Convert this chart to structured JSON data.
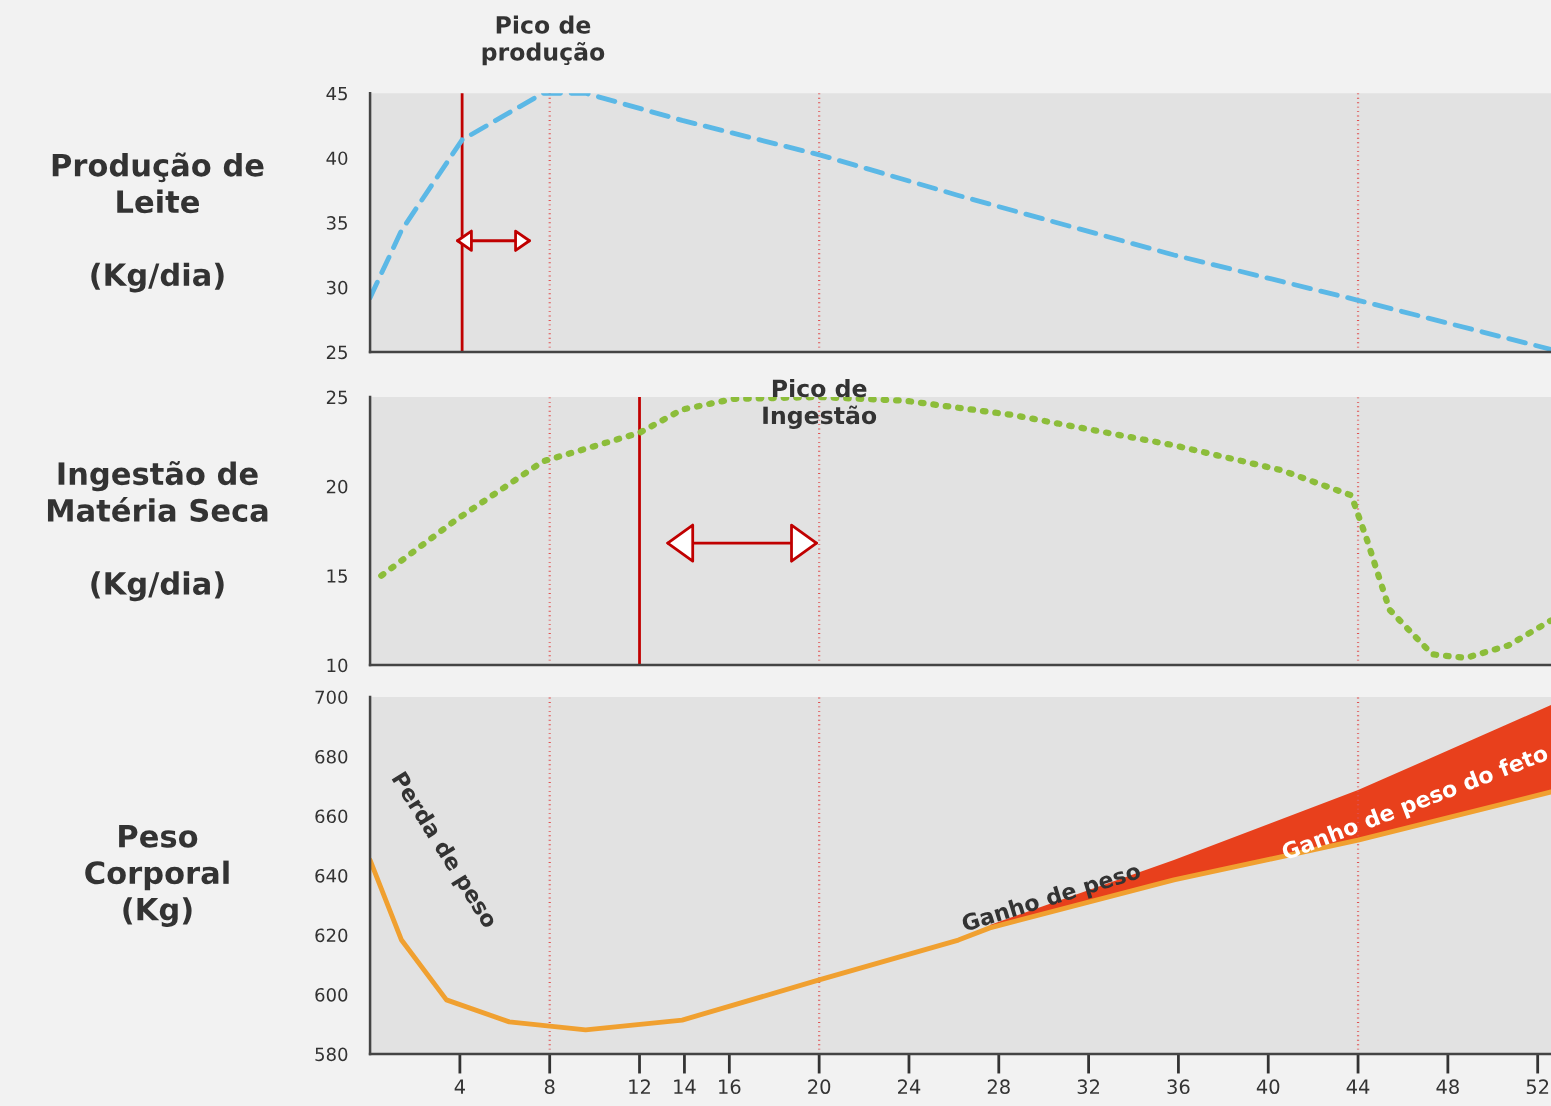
{
  "chart_data": [
    {
      "type": "line",
      "ylabel": "Produção de\nLeite\n\n(Kg/dia)",
      "xlim": [
        0,
        52.6
      ],
      "ylim": [
        25,
        45
      ],
      "yticks": [
        25,
        30,
        35,
        40,
        45
      ],
      "tick_labels": "y",
      "xticks": [
        4,
        8,
        12,
        14,
        16,
        20,
        24,
        28,
        32,
        36,
        40,
        44,
        48,
        52
      ],
      "line_style": "dashed",
      "series": [
        {
          "color": "#5bb8e6",
          "x": [
            0,
            1.4,
            4.1,
            7.7,
            9.6,
            13.9,
            20.1,
            26.2,
            35.8,
            44.0,
            52.6
          ],
          "values": [
            29.2,
            34.4,
            41.4,
            45,
            45,
            42.9,
            40.2,
            37.1,
            32.5,
            29.0,
            25.2
          ]
        }
      ],
      "ref_lines": [
        {
          "axis": "x",
          "value": 8,
          "color": "#e05050",
          "line_style": "dotted"
        },
        {
          "axis": "x",
          "value": 20,
          "color": "#e05050",
          "line_style": "dotted"
        },
        {
          "axis": "x",
          "value": 44,
          "color": "#e05050",
          "line_style": "dotted"
        },
        {
          "axis": "x",
          "value": 4.1,
          "color": "#c00000",
          "line_style": "solid"
        }
      ],
      "annotations": [
        {
          "text": "Pico de\nprodução",
          "x": 7.7,
          "y": 45
        }
      ]
    },
    {
      "type": "line",
      "ylabel": "Ingestão de\nMatéria Seca\n\n(Kg/dia)",
      "xlim": [
        0,
        52.6
      ],
      "ylim": [
        10,
        25
      ],
      "yticks": [
        10,
        15,
        20,
        25
      ],
      "tick_labels": "y",
      "xticks": [
        4,
        8,
        12,
        14,
        16,
        20,
        24,
        28,
        32,
        36,
        40,
        44,
        48,
        52
      ],
      "line_style": "dotted",
      "series": [
        {
          "color": "#8cbd3a",
          "x": [
            0.5,
            3.8,
            7.7,
            12,
            13.9,
            16.2,
            20,
            23.8,
            28.6,
            35.8,
            40.6,
            43.7,
            44.4,
            45.4,
            47.3,
            48.8,
            50.7,
            52.6
          ],
          "values": [
            15.0,
            18.1,
            21.4,
            23.0,
            24.3,
            24.9,
            25.0,
            24.8,
            24.0,
            22.3,
            20.9,
            19.5,
            17.0,
            13.1,
            10.6,
            10.4,
            11.1,
            12.5
          ]
        }
      ],
      "ref_lines": [
        {
          "axis": "x",
          "value": 8,
          "color": "#e05050",
          "line_style": "dotted"
        },
        {
          "axis": "x",
          "value": 20,
          "color": "#e05050",
          "line_style": "dotted"
        },
        {
          "axis": "x",
          "value": 44,
          "color": "#e05050",
          "line_style": "dotted"
        },
        {
          "axis": "x",
          "value": 12,
          "color": "#c00000",
          "line_style": "solid"
        }
      ],
      "annotations": [
        {
          "text": "Pico de\nIngestão",
          "x": 20,
          "y": 25.0
        }
      ]
    },
    {
      "type": "line",
      "ylabel": "Peso\nCorporal\n(Kg)",
      "xlim": [
        0,
        52.6
      ],
      "ylim": [
        580,
        700
      ],
      "yticks": [
        580,
        600,
        620,
        640,
        660,
        680,
        700
      ],
      "xticks": [
        4,
        8,
        12,
        14,
        16,
        20,
        24,
        28,
        32,
        36,
        40,
        44,
        48,
        52
      ],
      "line_style": "solid",
      "series": [
        {
          "color": "#f0a030",
          "x": [
            0,
            1.4,
            3.4,
            6.2,
            9.6,
            13.9,
            20,
            26.2,
            27.6,
            35.8,
            44,
            52.6
          ],
          "values": [
            645.2,
            618.3,
            598.2,
            590.8,
            588.1,
            591.4,
            604.9,
            618.3,
            622.4,
            638.5,
            651.9,
            668.1
          ]
        },
        {
          "type": "area",
          "color": "#e8401c",
          "x": [
            27.6,
            35.8,
            44,
            52.6
          ],
          "values": [
            623.4,
            645.2,
            668.7,
            697.3
          ]
        }
      ],
      "ref_lines": [
        {
          "axis": "x",
          "value": 8,
          "color": "#e05050",
          "line_style": "dotted"
        },
        {
          "axis": "x",
          "value": 20,
          "color": "#e05050",
          "line_style": "dotted"
        },
        {
          "axis": "x",
          "value": 44,
          "color": "#e05050",
          "line_style": "dotted"
        }
      ],
      "annotations": [
        "Perda de peso",
        "Ganho de peso",
        "Ganho de peso do feto"
      ]
    }
  ]
}
